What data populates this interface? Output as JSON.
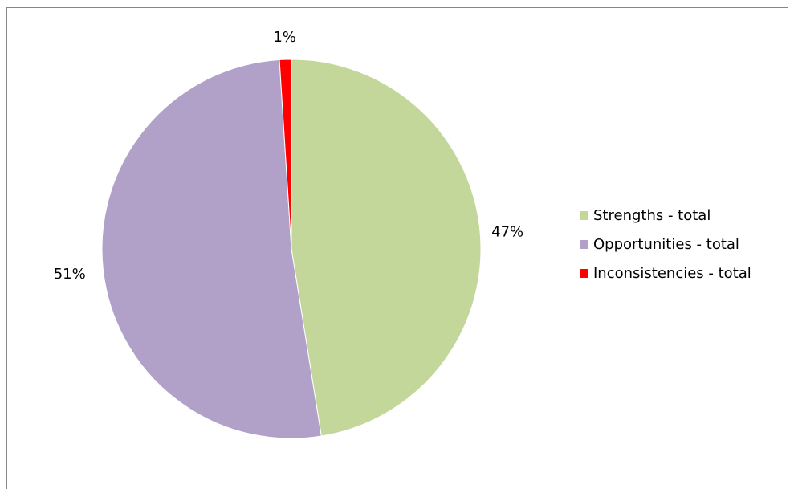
{
  "chart_data": {
    "type": "pie",
    "title": "",
    "legend_position": "right",
    "slices": [
      {
        "name": "Strengths - total",
        "value": 47,
        "label": "47%",
        "color": "#c4d79b"
      },
      {
        "name": "Opportunities - total",
        "value": 51,
        "label": "51%",
        "color": "#b1a0c7"
      },
      {
        "name": "Inconsistencies - total",
        "value": 1,
        "label": "1%",
        "color": "#ff0000"
      }
    ]
  }
}
